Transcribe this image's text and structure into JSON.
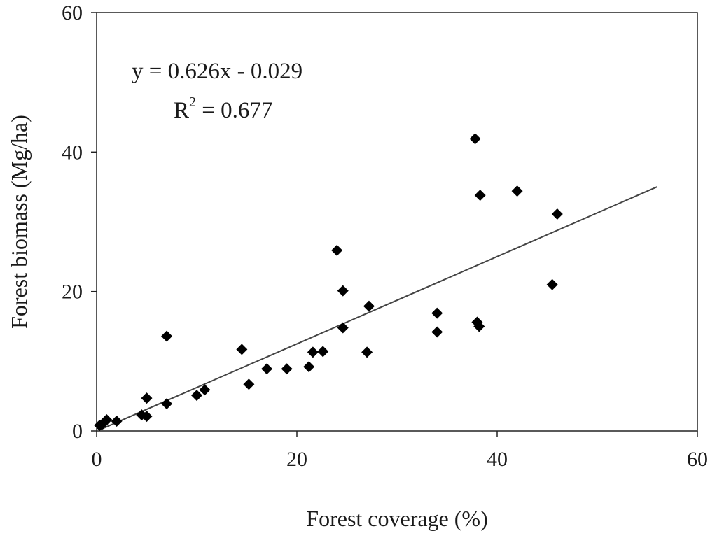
{
  "chart_data": {
    "type": "scatter",
    "xlabel": "Forest coverage (%)",
    "ylabel": "Forest biomass (Mg/ha)",
    "xlim": [
      0,
      60
    ],
    "ylim": [
      0,
      60
    ],
    "xticks": [
      "0",
      "20",
      "40",
      "60"
    ],
    "yticks": [
      "0",
      "20",
      "40",
      "60"
    ],
    "grid": false,
    "annotations": {
      "equation": "y = 0.626x - 0.029",
      "r_squared_prefix": "R",
      "r_squared_exponent": "2",
      "r_squared_value": " = 0.677"
    },
    "trendline": {
      "slope": 0.626,
      "intercept": -0.029,
      "x_range": [
        0.3,
        56
      ]
    },
    "points": [
      {
        "x": 0.3,
        "y": 0.8
      },
      {
        "x": 0.6,
        "y": 1.0
      },
      {
        "x": 1.0,
        "y": 1.6
      },
      {
        "x": 2.0,
        "y": 1.4
      },
      {
        "x": 4.5,
        "y": 2.3
      },
      {
        "x": 5.0,
        "y": 2.1
      },
      {
        "x": 5.0,
        "y": 4.7
      },
      {
        "x": 7.0,
        "y": 3.9
      },
      {
        "x": 7.0,
        "y": 13.6
      },
      {
        "x": 10.0,
        "y": 5.1
      },
      {
        "x": 10.8,
        "y": 5.9
      },
      {
        "x": 14.5,
        "y": 11.7
      },
      {
        "x": 15.2,
        "y": 6.7
      },
      {
        "x": 17.0,
        "y": 8.9
      },
      {
        "x": 19.0,
        "y": 8.9
      },
      {
        "x": 21.2,
        "y": 9.2
      },
      {
        "x": 21.6,
        "y": 11.3
      },
      {
        "x": 22.6,
        "y": 11.4
      },
      {
        "x": 24.0,
        "y": 25.9
      },
      {
        "x": 24.6,
        "y": 20.1
      },
      {
        "x": 24.6,
        "y": 14.8
      },
      {
        "x": 27.0,
        "y": 11.3
      },
      {
        "x": 27.2,
        "y": 17.9
      },
      {
        "x": 34.0,
        "y": 16.9
      },
      {
        "x": 34.0,
        "y": 14.2
      },
      {
        "x": 37.8,
        "y": 41.9
      },
      {
        "x": 38.0,
        "y": 15.6
      },
      {
        "x": 38.2,
        "y": 15.0
      },
      {
        "x": 38.3,
        "y": 33.8
      },
      {
        "x": 42.0,
        "y": 34.4
      },
      {
        "x": 45.5,
        "y": 21.0
      },
      {
        "x": 46.0,
        "y": 31.1
      }
    ]
  }
}
